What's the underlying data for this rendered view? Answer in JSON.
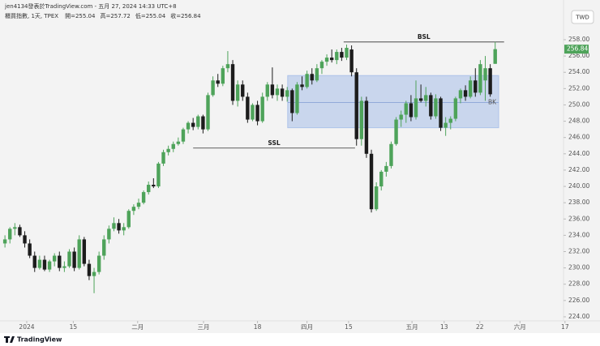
{
  "chart_data": {
    "type": "candlestick",
    "header": "jen4134發表於TradingView.com - 五月 27, 2024 14:33 UTC+8",
    "symbol": "櫃買指數, 1天, TPEX",
    "ohlc_labels": [
      "開=",
      "高=",
      "低=",
      "收="
    ],
    "currency": "TWD",
    "footer": "TradingView",
    "up_color": "#4ea35a",
    "down_color": "#1c1c1c",
    "ohlc": [
      [
        233,
        234,
        232.5,
        233.5
      ],
      [
        233.5,
        235,
        233,
        234.8
      ],
      [
        234.8,
        235.5,
        234,
        235
      ],
      [
        235,
        235.3,
        233.8,
        234
      ],
      [
        234,
        234.5,
        232.5,
        233
      ],
      [
        233,
        233.5,
        231.2,
        231.5
      ],
      [
        231.5,
        232,
        229.5,
        230
      ],
      [
        230,
        231.5,
        229.8,
        231
      ],
      [
        231,
        231.5,
        229.6,
        229.8
      ],
      [
        229.8,
        231,
        229.5,
        230.8
      ],
      [
        230.8,
        231.8,
        230.2,
        231.5
      ],
      [
        231.5,
        232,
        229.6,
        230
      ],
      [
        230,
        230.8,
        229.5,
        230.2
      ],
      [
        230.2,
        232.3,
        230,
        232
      ],
      [
        232,
        232.5,
        229.6,
        230
      ],
      [
        230,
        234,
        229.8,
        233.5
      ],
      [
        233.5,
        233.8,
        230.2,
        230.5
      ],
      [
        230.5,
        231,
        228.5,
        229
      ],
      [
        229,
        230,
        226.9,
        229.5
      ],
      [
        229.5,
        232,
        229.2,
        231.5
      ],
      [
        231.5,
        234,
        231,
        233.5
      ],
      [
        233.5,
        235.2,
        233,
        234.8
      ],
      [
        234.8,
        236.2,
        234.5,
        235.5
      ],
      [
        235.5,
        236,
        234.2,
        234.6
      ],
      [
        234.6,
        235.5,
        234,
        235
      ],
      [
        235,
        237.2,
        234.8,
        237
      ],
      [
        237,
        237.8,
        236.5,
        237.5
      ],
      [
        237.5,
        238.5,
        237.2,
        238
      ],
      [
        238,
        239.5,
        237.8,
        239.3
      ],
      [
        239.3,
        240.6,
        239,
        240.2
      ],
      [
        240.2,
        241,
        239.8,
        240
      ],
      [
        240,
        243,
        239.8,
        242.8
      ],
      [
        242.8,
        244.5,
        242.5,
        244.2
      ],
      [
        244.2,
        245,
        243.8,
        244.6
      ],
      [
        244.6,
        245.5,
        244.2,
        245.2
      ],
      [
        245.2,
        246,
        245,
        245.5
      ],
      [
        245.5,
        247.2,
        245.2,
        247
      ],
      [
        247,
        248,
        246.5,
        247.8
      ],
      [
        247.8,
        248.4,
        246.9,
        247.3
      ],
      [
        247.3,
        248.8,
        247,
        248.6
      ],
      [
        248.6,
        248.8,
        246.5,
        247
      ],
      [
        247,
        251.5,
        246.8,
        251.2
      ],
      [
        251.2,
        253.5,
        251,
        253
      ],
      [
        253,
        253.8,
        252.2,
        252.6
      ],
      [
        252.6,
        254.8,
        252.3,
        254.5
      ],
      [
        254.5,
        256.6,
        254,
        255
      ],
      [
        255,
        255.5,
        250,
        250.5
      ],
      [
        250.5,
        253,
        249.8,
        252.5
      ],
      [
        252.5,
        253,
        250.5,
        251
      ],
      [
        251,
        251.5,
        247.8,
        248.2
      ],
      [
        248.2,
        250.2,
        248,
        250
      ],
      [
        250,
        250.5,
        247.5,
        248
      ],
      [
        248,
        251.5,
        247.8,
        251
      ],
      [
        251,
        252.8,
        250.5,
        252.5
      ],
      [
        252.5,
        254.6,
        250.8,
        251.2
      ],
      [
        251.2,
        252.5,
        250.5,
        252
      ],
      [
        252,
        252.5,
        250.5,
        251
      ],
      [
        251,
        252.2,
        250.4,
        251.8
      ],
      [
        251.8,
        252,
        248,
        249
      ],
      [
        249,
        252.8,
        248.8,
        252.5
      ],
      [
        252.5,
        253.5,
        251.8,
        252.2
      ],
      [
        252.2,
        254.2,
        252,
        253.8
      ],
      [
        253.8,
        254.5,
        252.5,
        253
      ],
      [
        253,
        255,
        252.8,
        254.5
      ],
      [
        254.5,
        255.5,
        253.8,
        255.3
      ],
      [
        255.3,
        256.2,
        254.8,
        255.8
      ],
      [
        255.8,
        256.8,
        255.2,
        255.5
      ],
      [
        255.5,
        256.8,
        255,
        256.5
      ],
      [
        256.5,
        257,
        255.4,
        255.8
      ],
      [
        255.8,
        257.4,
        255.5,
        257
      ],
      [
        256.8,
        257.3,
        253.5,
        254
      ],
      [
        254,
        254.5,
        245,
        245.8
      ],
      [
        245.8,
        251,
        245,
        250.5
      ],
      [
        250.5,
        251,
        243.5,
        244
      ],
      [
        244,
        244.5,
        236.8,
        237.2
      ],
      [
        237.2,
        240.5,
        237,
        240
      ],
      [
        240,
        242,
        239.5,
        241.8
      ],
      [
        241.8,
        243,
        241.2,
        242.5
      ],
      [
        242.5,
        245.5,
        242.2,
        245.2
      ],
      [
        245.2,
        248.5,
        245,
        248.2
      ],
      [
        248.2,
        249.3,
        247.3,
        248.8
      ],
      [
        248.8,
        250.5,
        247.8,
        250.2
      ],
      [
        250.2,
        251.2,
        248,
        248.5
      ],
      [
        248.5,
        253,
        248.2,
        250.8
      ],
      [
        250.8,
        252.5,
        250.3,
        250.5
      ],
      [
        250.5,
        252.2,
        249.8,
        251.2
      ],
      [
        251.2,
        251.5,
        248.2,
        248.6
      ],
      [
        248.6,
        251.3,
        248.3,
        250.8
      ],
      [
        250.8,
        251,
        246.8,
        247.2
      ],
      [
        247.2,
        248.5,
        246.2,
        247.8
      ],
      [
        247.8,
        248.6,
        247,
        248.3
      ],
      [
        248.3,
        251,
        248,
        250.8
      ],
      [
        250.8,
        252,
        250.2,
        251.8
      ],
      [
        251.8,
        252.4,
        250.5,
        251
      ],
      [
        251,
        253.5,
        250.8,
        253
      ],
      [
        253,
        254.5,
        251,
        251.5
      ],
      [
        251.5,
        255.5,
        251.2,
        255
      ],
      [
        253,
        256,
        250.5,
        254.5
      ],
      [
        254.5,
        255,
        251,
        251.3
      ],
      [
        255.04,
        257.72,
        255.04,
        256.84
      ]
    ],
    "xlim": [
      -1,
      112.8
    ],
    "ylim": [
      223.5,
      262.87
    ],
    "yticks": [
      {
        "value": 224,
        "label": "224.00"
      },
      {
        "value": 226,
        "label": "226.00"
      },
      {
        "value": 228,
        "label": "228.00"
      },
      {
        "value": 230,
        "label": "230.00"
      },
      {
        "value": 232,
        "label": "232.00"
      },
      {
        "value": 234,
        "label": "234.00"
      },
      {
        "value": 236,
        "label": "236.00"
      },
      {
        "value": 238,
        "label": "238.00"
      },
      {
        "value": 240,
        "label": "240.00"
      },
      {
        "value": 242,
        "label": "242.00"
      },
      {
        "value": 244,
        "label": "244.00"
      },
      {
        "value": 246,
        "label": "246.00"
      },
      {
        "value": 248,
        "label": "248.00"
      },
      {
        "value": 250,
        "label": "250.00"
      },
      {
        "value": 252,
        "label": "252.00"
      },
      {
        "value": 254,
        "label": "254.00"
      },
      {
        "value": 256,
        "label": "256.00"
      },
      {
        "value": 258,
        "label": "258.00"
      }
    ],
    "xticks": [
      {
        "value": 4.4,
        "label": "2024"
      },
      {
        "value": 13.8,
        "label": "15"
      },
      {
        "value": 26.8,
        "label": "二月"
      },
      {
        "value": 40.1,
        "label": "三月"
      },
      {
        "value": 51,
        "label": "18"
      },
      {
        "value": 61,
        "label": "四月"
      },
      {
        "value": 69.4,
        "label": "15"
      },
      {
        "value": 82.2,
        "label": "五月"
      },
      {
        "value": 88.7,
        "label": "13"
      },
      {
        "value": 95.9,
        "label": "22"
      },
      {
        "value": 104,
        "label": "六月"
      },
      {
        "value": 113.1,
        "label": "17"
      }
    ],
    "levels": [
      {
        "label": "BSL",
        "value": 257.72,
        "start": 68.4,
        "end": 100.8
      },
      {
        "label": "SSL",
        "value": 244.7,
        "start": 38,
        "end": 70.7
      }
    ],
    "zones": [
      {
        "label": "BK",
        "top": 253.6,
        "bottom": 247.2,
        "mid": 250.3,
        "start": 57.1,
        "end": 99.7,
        "color": "#aec3ea"
      }
    ]
  }
}
